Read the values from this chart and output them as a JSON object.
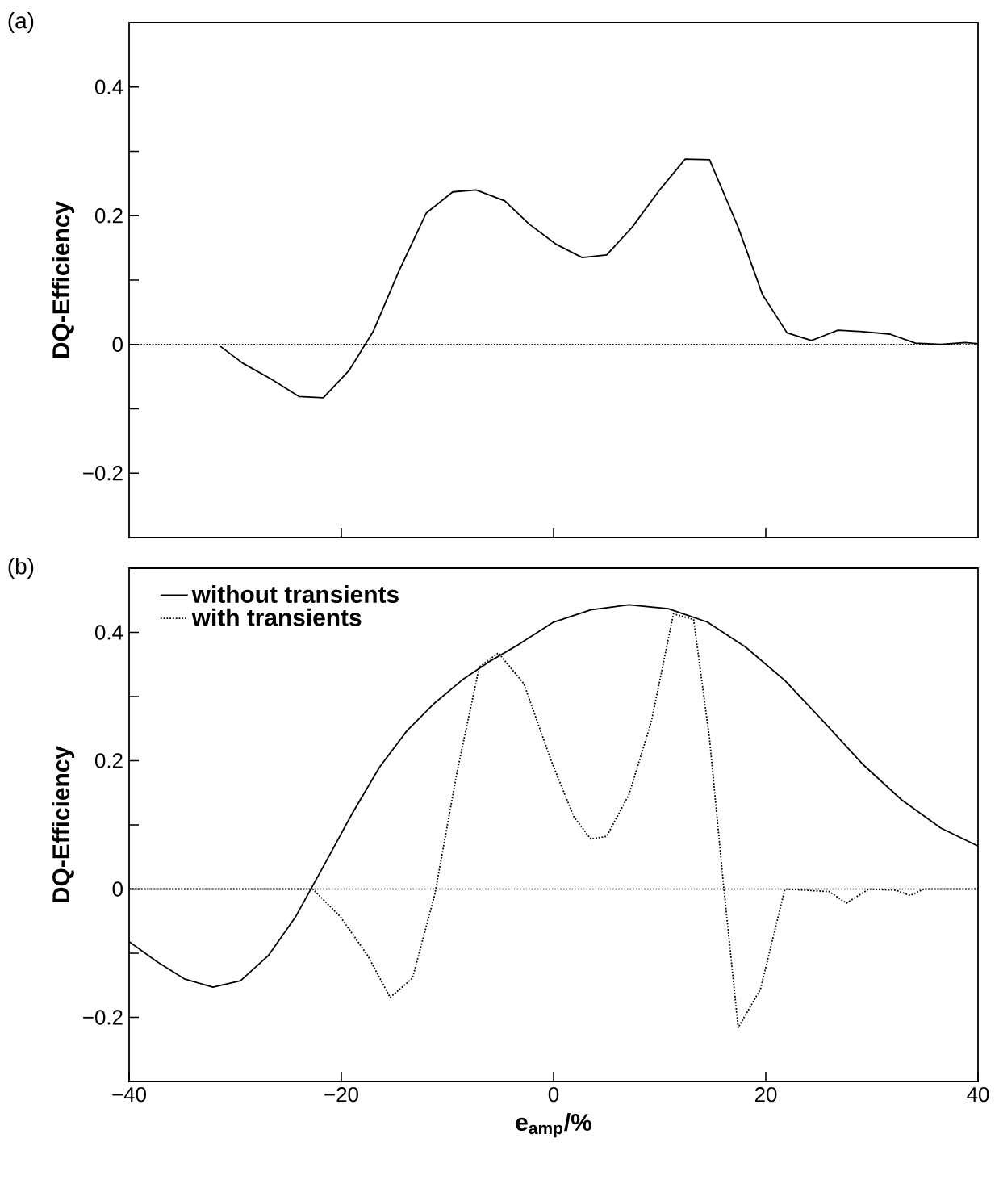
{
  "chart_data": [
    {
      "type": "line",
      "title": "(a)",
      "ylabel": "DQ-Efficiency",
      "xlim": [
        -40,
        40
      ],
      "ylim": [
        -0.3,
        0.5
      ],
      "xticks": [
        -20,
        0,
        20
      ],
      "yticks": [
        {
          "value": -0.2,
          "label": "−0.2"
        },
        {
          "value": -0.1,
          "label": null
        },
        0,
        {
          "value": 0.1,
          "label": null
        },
        0.2,
        {
          "value": 0.3,
          "label": null
        },
        0.4
      ],
      "tick_labels": "y",
      "grid": false,
      "legend": false,
      "ref_lines": [
        {
          "axis": "y",
          "value": 0,
          "line_style": "dotted",
          "color": "#000000"
        }
      ],
      "series": [
        {
          "color": "#000000",
          "line_style": "solid",
          "x": [
            -31.4,
            -29.3,
            -26.6,
            -24.0,
            -21.7,
            -19.3,
            -17.0,
            -14.6,
            -12.0,
            -9.5,
            -7.3,
            -4.6,
            -2.3,
            0.2,
            2.7,
            5.0,
            7.4,
            9.9,
            12.4,
            14.7,
            17.4,
            19.7,
            22.0,
            24.3,
            26.8,
            29.1,
            31.7,
            34.1,
            36.5,
            38.8,
            40
          ],
          "values": [
            -0.003,
            -0.029,
            -0.054,
            -0.081,
            -0.083,
            -0.041,
            0.02,
            0.113,
            0.204,
            0.237,
            0.24,
            0.223,
            0.187,
            0.156,
            0.135,
            0.139,
            0.182,
            0.238,
            0.288,
            0.287,
            0.182,
            0.077,
            0.018,
            0.006,
            0.022,
            0.02,
            0.016,
            0.002,
            0.0,
            0.003,
            0.001
          ]
        }
      ]
    },
    {
      "type": "line",
      "title": "(b)",
      "xlabel": "**e$_{amp}$/%**",
      "ylabel": "DQ-Efficiency",
      "xlim": [
        -40,
        40
      ],
      "ylim": [
        -0.3,
        0.5
      ],
      "xticks": [
        {
          "value": -40,
          "label": "−40"
        },
        {
          "value": -20,
          "label": "−20"
        },
        0,
        20,
        40
      ],
      "yticks": [
        {
          "value": -0.2,
          "label": "−0.2"
        },
        {
          "value": -0.1,
          "label": null
        },
        0,
        {
          "value": 0.1,
          "label": null
        },
        0.2,
        {
          "value": 0.3,
          "label": null
        },
        0.4
      ],
      "grid": false,
      "legend": "top left",
      "ref_lines": [
        {
          "axis": "y",
          "value": 0,
          "line_style": "dotted",
          "color": "#000000"
        }
      ],
      "series": [
        {
          "name": "without transients",
          "color": "#000000",
          "line_style": "solid",
          "x": [
            -40,
            -37.4,
            -34.8,
            -32.1,
            -29.5,
            -26.9,
            -24.3,
            -21.7,
            -19.0,
            -16.4,
            -13.8,
            -11.2,
            -8.6,
            -6.0,
            -3.3,
            0,
            3.5,
            7.1,
            10.8,
            14.5,
            18.1,
            21.8,
            25.5,
            29.1,
            32.8,
            36.5,
            40
          ],
          "values": [
            -0.082,
            -0.113,
            -0.14,
            -0.153,
            -0.143,
            -0.104,
            -0.043,
            0.035,
            0.117,
            0.19,
            0.247,
            0.29,
            0.326,
            0.355,
            0.381,
            0.416,
            0.435,
            0.443,
            0.437,
            0.416,
            0.377,
            0.325,
            0.26,
            0.195,
            0.139,
            0.095,
            0.067
          ]
        },
        {
          "name": "with transients",
          "color": "#000000",
          "line_style": "dotted",
          "x": [
            -40,
            -22.7,
            -20.1,
            -17.5,
            -15.4,
            -13.3,
            -11.2,
            -9.1,
            -7.0,
            -5.2,
            -2.8,
            -0.2,
            1.9,
            3.5,
            5.0,
            7.1,
            9.2,
            11.3,
            13.2,
            14.7,
            16.0,
            17.4,
            19.5,
            21.8,
            26.0,
            27.6,
            29.7,
            32.3,
            33.6,
            34.9,
            40
          ],
          "values": [
            0,
            0,
            -0.043,
            -0.104,
            -0.169,
            -0.139,
            -0.009,
            0.182,
            0.346,
            0.368,
            0.32,
            0.199,
            0.113,
            0.078,
            0.082,
            0.147,
            0.26,
            0.429,
            0.42,
            0.234,
            0.009,
            -0.216,
            -0.156,
            0,
            -0.004,
            -0.022,
            0,
            -0.002,
            -0.01,
            0,
            0
          ]
        }
      ]
    }
  ]
}
